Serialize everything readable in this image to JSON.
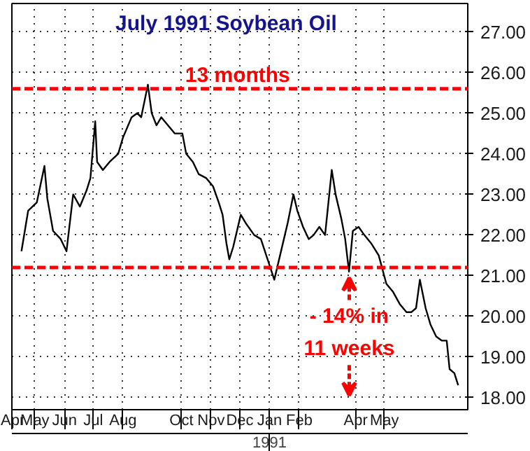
{
  "chart_data": {
    "type": "line",
    "title": "July 1991 Soybean Oil",
    "x": [
      "1990-04-17",
      "1990-04-24",
      "1990-05-03",
      "1990-05-11",
      "1990-05-14",
      "1990-05-20",
      "1990-05-28",
      "1990-06-03",
      "1990-06-10",
      "1990-06-17",
      "1990-06-24",
      "1990-06-28",
      "1990-07-03",
      "1990-07-05",
      "1990-07-11",
      "1990-07-18",
      "1990-07-27",
      "1990-08-01",
      "1990-08-10",
      "1990-08-16",
      "1990-08-20",
      "1990-08-27",
      "1990-08-31",
      "1990-09-05",
      "1990-09-10",
      "1990-09-17",
      "1990-09-24",
      "1990-10-02",
      "1990-10-06",
      "1990-10-13",
      "1990-10-19",
      "1990-10-27",
      "1990-11-03",
      "1990-11-09",
      "1990-11-13",
      "1990-11-17",
      "1990-11-20",
      "1990-11-24",
      "1990-12-02",
      "1990-12-07",
      "1990-12-16",
      "1990-12-23",
      "1990-12-30",
      "1991-01-06",
      "1991-01-12",
      "1991-01-20",
      "1991-01-26",
      "1991-01-30",
      "1991-02-05",
      "1991-02-11",
      "1991-02-16",
      "1991-02-22",
      "1991-02-28",
      "1991-03-07",
      "1991-03-11",
      "1991-03-17",
      "1991-03-21",
      "1991-03-25",
      "1991-03-29",
      "1991-04-04",
      "1991-04-10",
      "1991-04-17",
      "1991-04-25",
      "1991-05-03",
      "1991-05-10",
      "1991-05-17",
      "1991-05-24",
      "1991-05-29",
      "1991-06-03",
      "1991-06-07",
      "1991-06-13",
      "1991-06-18",
      "1991-06-24",
      "1991-06-30",
      "1991-07-05",
      "1991-07-08",
      "1991-07-13",
      "1991-07-17"
    ],
    "series": [
      {
        "color": "#000000",
        "values": [
          21.6,
          22.6,
          22.8,
          23.7,
          22.9,
          22.1,
          21.9,
          21.6,
          23.0,
          22.7,
          23.1,
          23.4,
          24.8,
          23.8,
          23.6,
          23.8,
          24.0,
          24.4,
          24.9,
          25.0,
          24.9,
          25.7,
          25.0,
          24.7,
          24.9,
          24.7,
          24.5,
          24.5,
          24.0,
          23.8,
          23.5,
          23.4,
          23.2,
          22.8,
          22.5,
          21.8,
          21.4,
          21.7,
          22.5,
          22.3,
          22.0,
          21.9,
          21.4,
          20.9,
          21.5,
          22.3,
          23.0,
          22.6,
          22.2,
          21.9,
          22.0,
          22.2,
          22.0,
          23.6,
          23.0,
          22.4,
          21.9,
          21.1,
          22.1,
          22.2,
          22.0,
          21.8,
          21.5,
          20.8,
          20.6,
          20.3,
          20.1,
          20.1,
          20.2,
          20.9,
          20.2,
          19.8,
          19.5,
          19.4,
          19.4,
          18.7,
          18.6,
          18.3
        ]
      }
    ],
    "xlim": [
      "1990-04-07",
      "1991-07-27"
    ],
    "xticks": [
      {
        "value": "1990-04-07",
        "label": "Apr"
      },
      {
        "value": "1990-05-01",
        "label": "May"
      },
      {
        "value": "1990-06-01",
        "label": "Jun"
      },
      {
        "value": "1990-07-01",
        "label": "Jul"
      },
      {
        "value": "1990-08-01",
        "label": "Aug"
      },
      {
        "value": "1990-10-01",
        "label": "Oct"
      },
      {
        "value": "1990-11-01",
        "label": "Nov"
      },
      {
        "value": "1990-12-01",
        "label": "Dec"
      },
      {
        "value": "1991-01-01",
        "label": "Jan"
      },
      {
        "value": "1991-02-01",
        "label": "Feb"
      },
      {
        "value": "1991-04-01",
        "label": "Apr"
      },
      {
        "value": "1991-05-01",
        "label": "May"
      }
    ],
    "ylim": [
      17.7,
      27.7
    ],
    "yticks": [
      {
        "value": 18,
        "label": "18.00"
      },
      {
        "value": 19,
        "label": "19.00"
      },
      {
        "value": 20,
        "label": "20.00"
      },
      {
        "value": 21,
        "label": "21.00"
      },
      {
        "value": 22,
        "label": "22.00"
      },
      {
        "value": 23,
        "label": "23.00"
      },
      {
        "value": 24,
        "label": "24.00"
      },
      {
        "value": 25,
        "label": "25.00"
      },
      {
        "value": 26,
        "label": "26.00"
      },
      {
        "value": 27,
        "label": "27.00"
      }
    ],
    "grid": true,
    "marker": "none",
    "line_style": "solid",
    "ref_lines": [
      {
        "axis": "y",
        "value": 25.6,
        "label": "13 months",
        "color": "#ff0000",
        "line_style": "dashed"
      },
      {
        "axis": "y",
        "value": 21.2,
        "label": null,
        "color": "#ff0000",
        "line_style": "dashed"
      }
    ],
    "annotations": [
      {
        "text": "1991",
        "x": "1991-01-01"
      },
      "- 14% in",
      "11 weeks"
    ]
  }
}
